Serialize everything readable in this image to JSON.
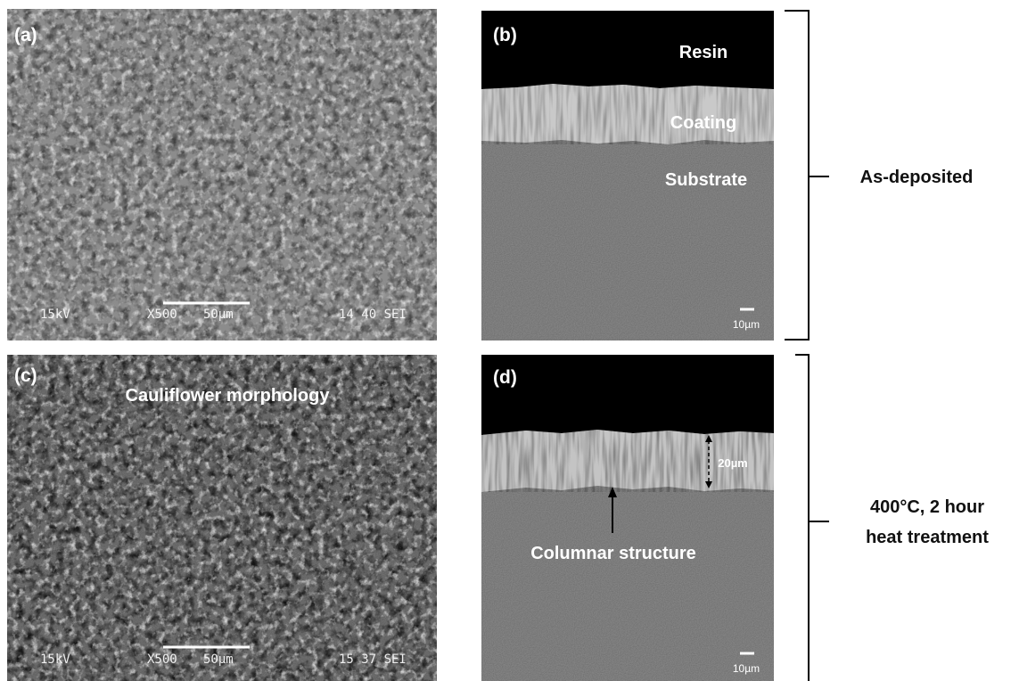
{
  "panels": [
    {
      "label": "(a)",
      "info_bar": [
        "15kV",
        "X500",
        "50µm",
        "14 40 SEI"
      ]
    },
    {
      "label": "(b)",
      "annotations": [
        "Resin",
        "Coating",
        "Substrate"
      ],
      "scale_bar": "10µm"
    },
    {
      "label": "(c)",
      "annotation": "Cauliflower morphology",
      "info_bar": [
        "15kV",
        "X500",
        "50µm",
        "15 37 SEI"
      ]
    },
    {
      "label": "(d)",
      "thickness": "20µm",
      "annotation": "Columnar structure",
      "scale_bar": "10µm"
    }
  ],
  "groups": [
    {
      "label_lines": [
        "As-deposited"
      ]
    },
    {
      "label_lines": [
        "400°C, 2 hour",
        "heat treatment"
      ]
    }
  ]
}
